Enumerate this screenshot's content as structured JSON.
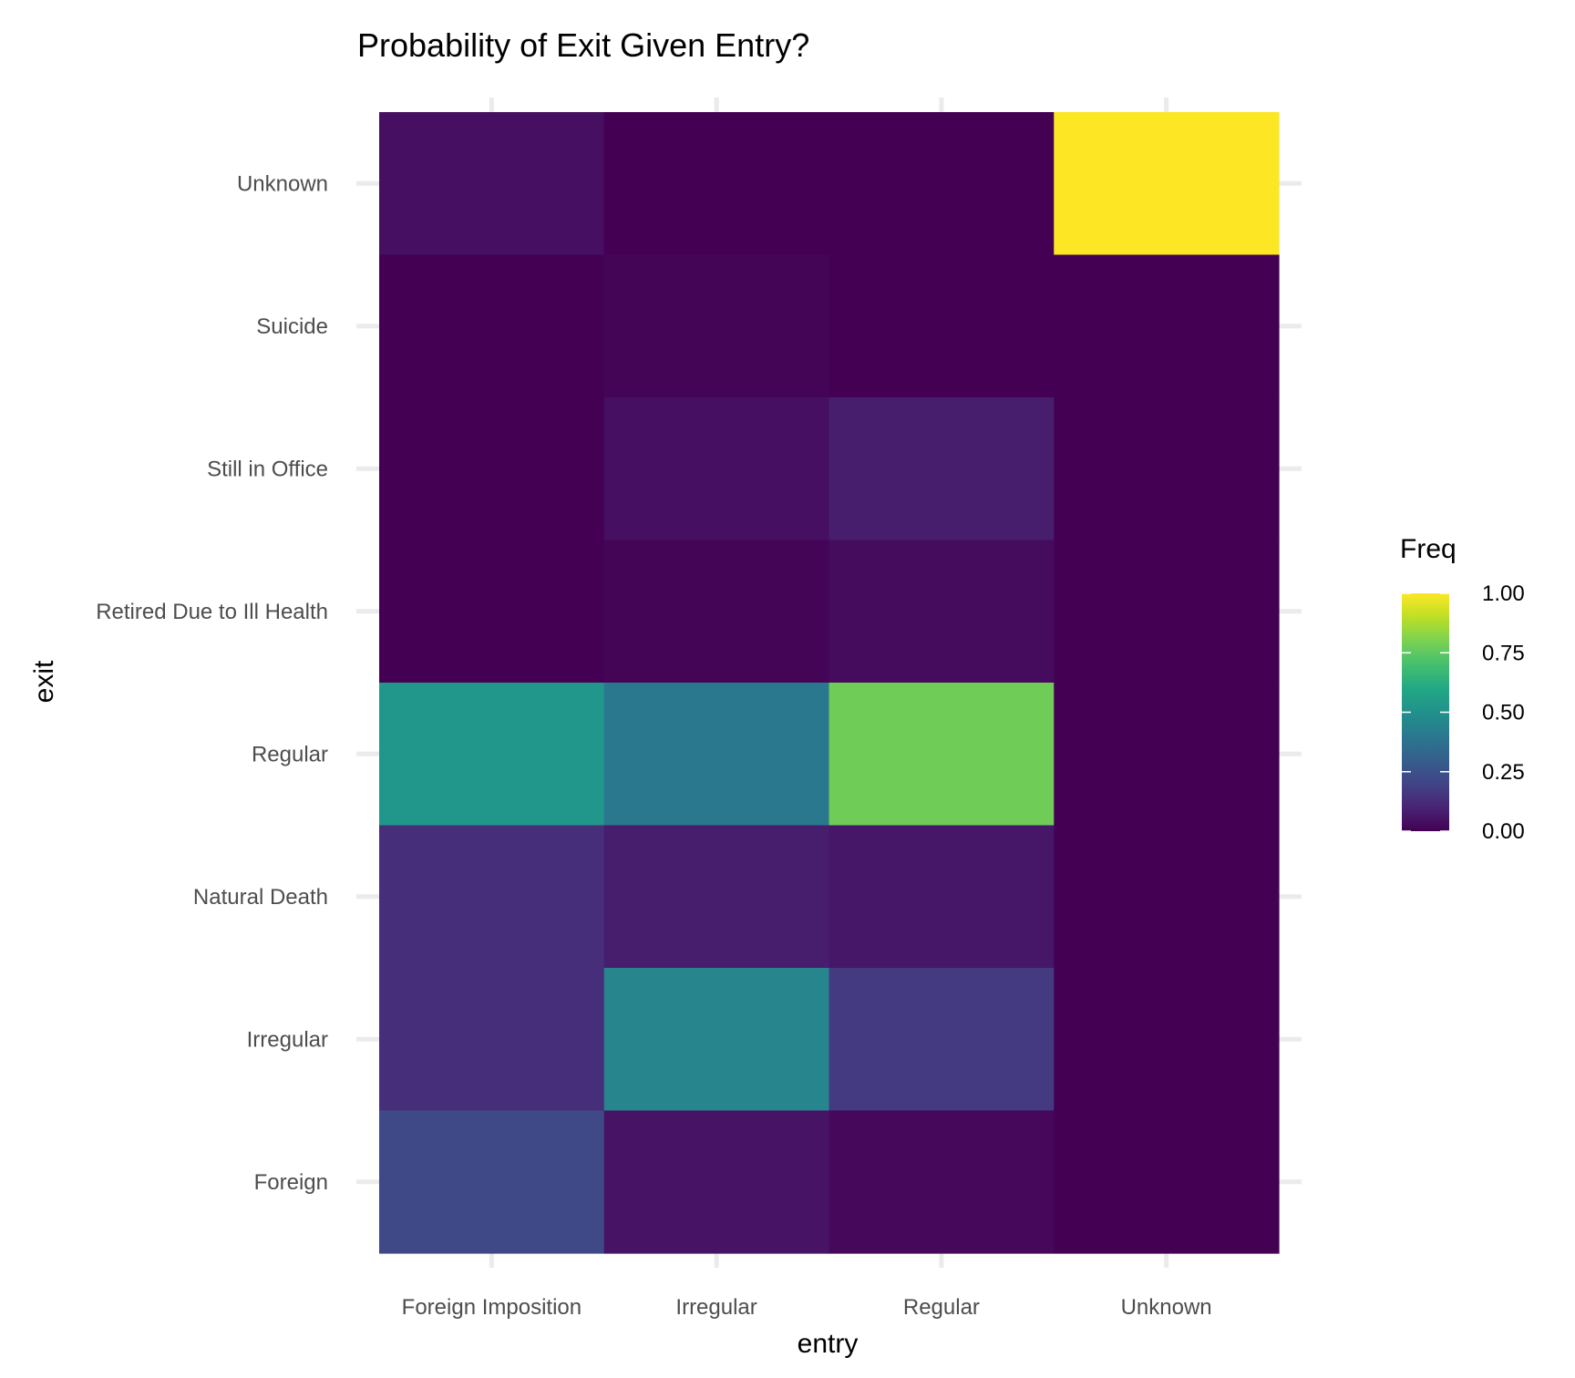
{
  "chart_data": {
    "type": "heatmap",
    "title": "Probability of Exit Given Entry?",
    "xlabel": "entry",
    "ylabel": "exit",
    "x_categories": [
      "Foreign Imposition",
      "Irregular",
      "Regular",
      "Unknown"
    ],
    "y_categories": [
      "Unknown",
      "Suicide",
      "Still in Office",
      "Retired Due to Ill Health",
      "Regular",
      "Natural Death",
      "Irregular",
      "Foreign"
    ],
    "values": [
      [
        0.04,
        0.0,
        0.0,
        1.0
      ],
      [
        0.0,
        0.01,
        0.0,
        0.0
      ],
      [
        0.0,
        0.04,
        0.08,
        0.0
      ],
      [
        0.0,
        0.01,
        0.03,
        0.0
      ],
      [
        0.52,
        0.4,
        0.78,
        0.0
      ],
      [
        0.13,
        0.08,
        0.06,
        0.0
      ],
      [
        0.13,
        0.45,
        0.17,
        0.0
      ],
      [
        0.22,
        0.05,
        0.02,
        0.0
      ]
    ],
    "legend": {
      "title": "Freq",
      "position": "right",
      "ticks": [
        1.0,
        0.75,
        0.5,
        0.25,
        0.0
      ],
      "tick_labels": [
        "1.00",
        "0.75",
        "0.50",
        "0.25",
        "0.00"
      ],
      "range": [
        0,
        1
      ]
    },
    "colorscale": "viridis",
    "grid": true
  }
}
